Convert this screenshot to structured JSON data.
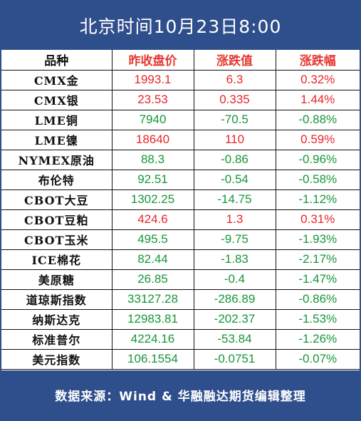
{
  "title": "北京时间10月23日8:00",
  "headers": [
    "品种",
    "昨收盘价",
    "涨跌值",
    "涨跌幅"
  ],
  "rows": [
    {
      "name": "CMX金",
      "close": "1993.1",
      "change": "6.3",
      "pct": "0.32%",
      "dir": "up"
    },
    {
      "name": "CMX银",
      "close": "23.53",
      "change": "0.335",
      "pct": "1.44%",
      "dir": "up"
    },
    {
      "name": "LME铜",
      "close": "7940",
      "change": "-70.5",
      "pct": "-0.88%",
      "dir": "down"
    },
    {
      "name": "LME镍",
      "close": "18640",
      "change": "110",
      "pct": "0.59%",
      "dir": "up"
    },
    {
      "name": "NYMEX原油",
      "close": "88.3",
      "change": "-0.86",
      "pct": "-0.96%",
      "dir": "down"
    },
    {
      "name": "布伦特",
      "close": "92.51",
      "change": "-0.54",
      "pct": "-0.58%",
      "dir": "down"
    },
    {
      "name": "CBOT大豆",
      "close": "1302.25",
      "change": "-14.75",
      "pct": "-1.12%",
      "dir": "down"
    },
    {
      "name": "CBOT豆粕",
      "close": "424.6",
      "change": "1.3",
      "pct": "0.31%",
      "dir": "up"
    },
    {
      "name": "CBOT玉米",
      "close": "495.5",
      "change": "-9.75",
      "pct": "-1.93%",
      "dir": "down"
    },
    {
      "name": "ICE棉花",
      "close": "82.44",
      "change": "-1.83",
      "pct": "-2.17%",
      "dir": "down"
    },
    {
      "name": "美原糖",
      "close": "26.85",
      "change": "-0.4",
      "pct": "-1.47%",
      "dir": "down"
    },
    {
      "name": "道琼斯指数",
      "close": "33127.28",
      "change": "-286.89",
      "pct": "-0.86%",
      "dir": "down"
    },
    {
      "name": "纳斯达克",
      "close": "12983.81",
      "change": "-202.37",
      "pct": "-1.53%",
      "dir": "down"
    },
    {
      "name": "标准普尔",
      "close": "4224.16",
      "change": "-53.84",
      "pct": "-1.26%",
      "dir": "down"
    },
    {
      "name": "美元指数",
      "close": "106.1554",
      "change": "-0.0751",
      "pct": "-0.07%",
      "dir": "down"
    }
  ],
  "footer": "数据来源：Wind & 华融融达期货编辑整理",
  "colors": {
    "brand_blue": "#2f4e8c",
    "up_red": "#e8252a",
    "down_green": "#18963a"
  }
}
